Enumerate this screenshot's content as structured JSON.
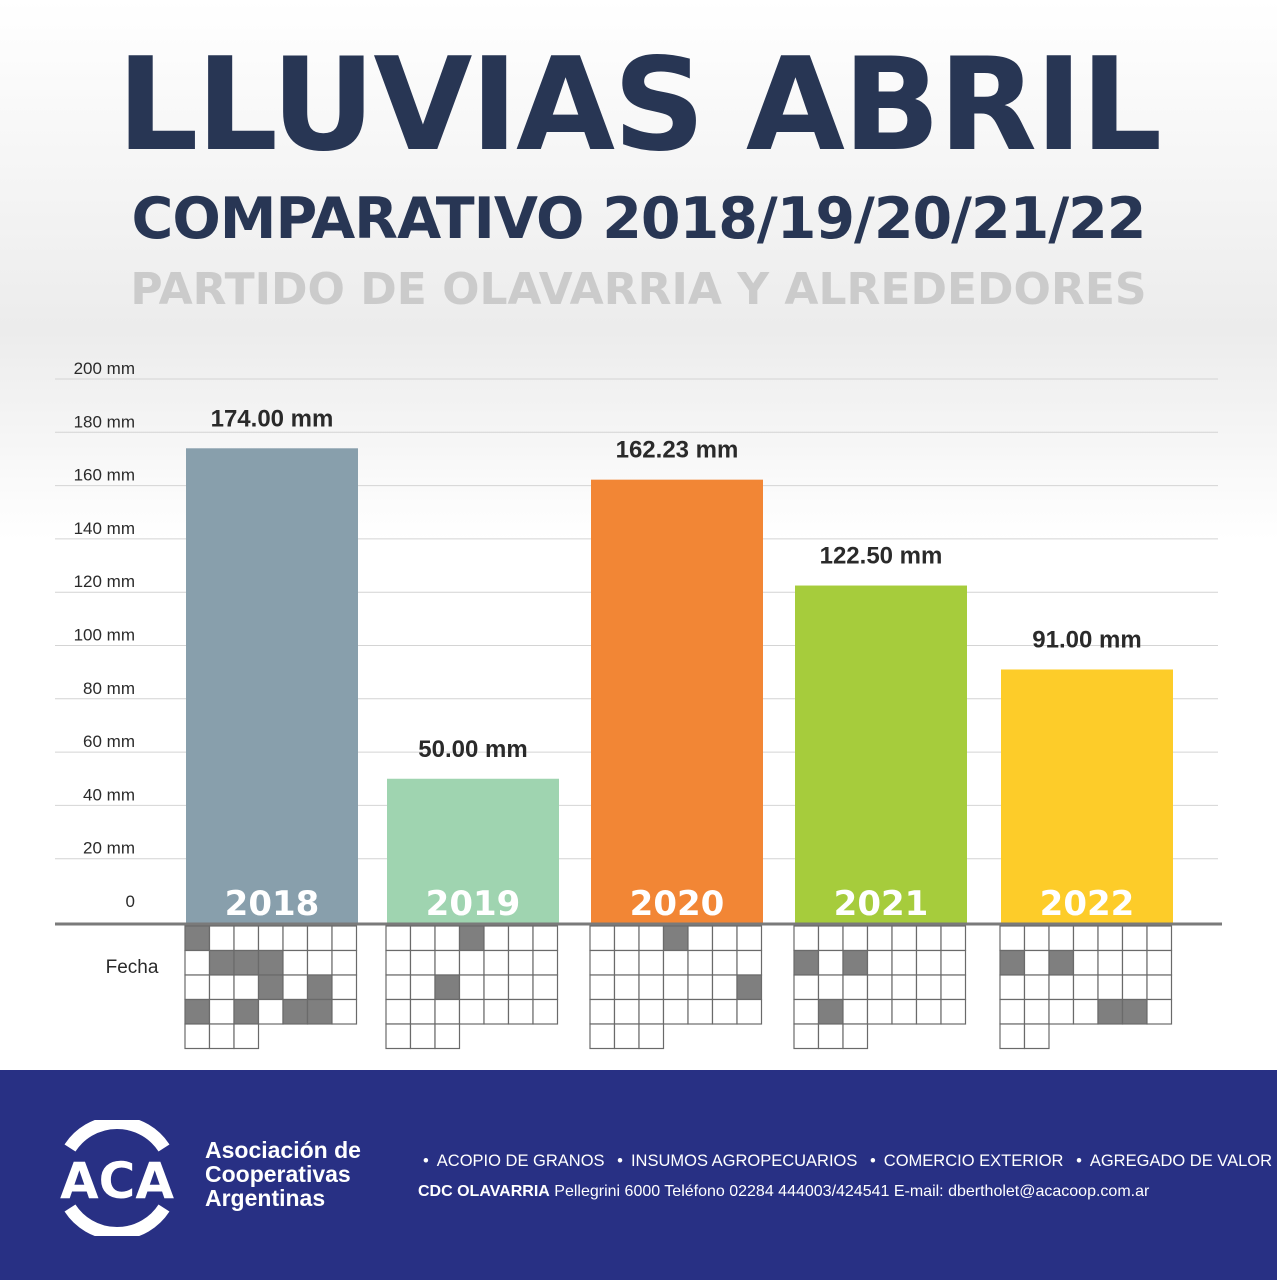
{
  "title": "LLUVIAS ABRIL",
  "subtitle": "COMPARATIVO 2018/19/20/21/22",
  "subtitle2": "PARTIDO DE OLAVARRIA Y ALREDEDORES",
  "chart_data": {
    "type": "bar",
    "categories": [
      "2018",
      "2019",
      "2020",
      "2021",
      "2022"
    ],
    "values": [
      174.0,
      50.0,
      162.23,
      122.5,
      91.0
    ],
    "value_labels": [
      "174.00 mm",
      "50.00 mm",
      "162.23 mm",
      "122.50 mm",
      "91.00 mm"
    ],
    "colors": [
      "#889fac",
      "#9fd4b0",
      "#f28635",
      "#a6cc3c",
      "#fdcc29"
    ],
    "y_ticks": [
      "0",
      "20 mm",
      "40 mm",
      "60 mm",
      "80 mm",
      "100 mm",
      "120 mm",
      "140 mm",
      "160 mm",
      "180 mm",
      "200 mm"
    ],
    "ylim": [
      0,
      200
    ],
    "grid": true,
    "legend": "none",
    "xlabel": "Fecha",
    "calendars": [
      {
        "rows": 5,
        "last_row_cells": 3,
        "filled": [
          [
            0,
            0
          ],
          [
            1,
            1
          ],
          [
            1,
            2
          ],
          [
            1,
            3
          ],
          [
            2,
            3
          ],
          [
            2,
            5
          ],
          [
            3,
            0
          ],
          [
            3,
            2
          ],
          [
            3,
            4
          ],
          [
            3,
            5
          ]
        ]
      },
      {
        "rows": 5,
        "last_row_cells": 3,
        "filled": [
          [
            0,
            3
          ],
          [
            2,
            2
          ]
        ]
      },
      {
        "rows": 5,
        "last_row_cells": 3,
        "filled": [
          [
            0,
            3
          ],
          [
            2,
            6
          ]
        ]
      },
      {
        "rows": 5,
        "last_row_cells": 3,
        "filled": [
          [
            1,
            0
          ],
          [
            1,
            2
          ],
          [
            3,
            1
          ]
        ]
      },
      {
        "rows": 5,
        "last_row_cells": 2,
        "filled": [
          [
            1,
            0
          ],
          [
            1,
            2
          ],
          [
            3,
            4
          ],
          [
            3,
            5
          ]
        ]
      }
    ]
  },
  "footer": {
    "logo_text": "ACA",
    "org_name": [
      "Asociación de",
      "Cooperativas",
      "Argentinas"
    ],
    "services": [
      "ACOPIO DE GRANOS",
      "INSUMOS AGROPECUARIOS",
      "COMERCIO EXTERIOR",
      "AGREGADO DE VALOR"
    ],
    "contact_bold": "CDC OLAVARRIA",
    "contact_rest": " Pellegrini 6000 Teléfono 02284 444003/424541 E-mail: dbertholet@acacoop.com.ar"
  }
}
